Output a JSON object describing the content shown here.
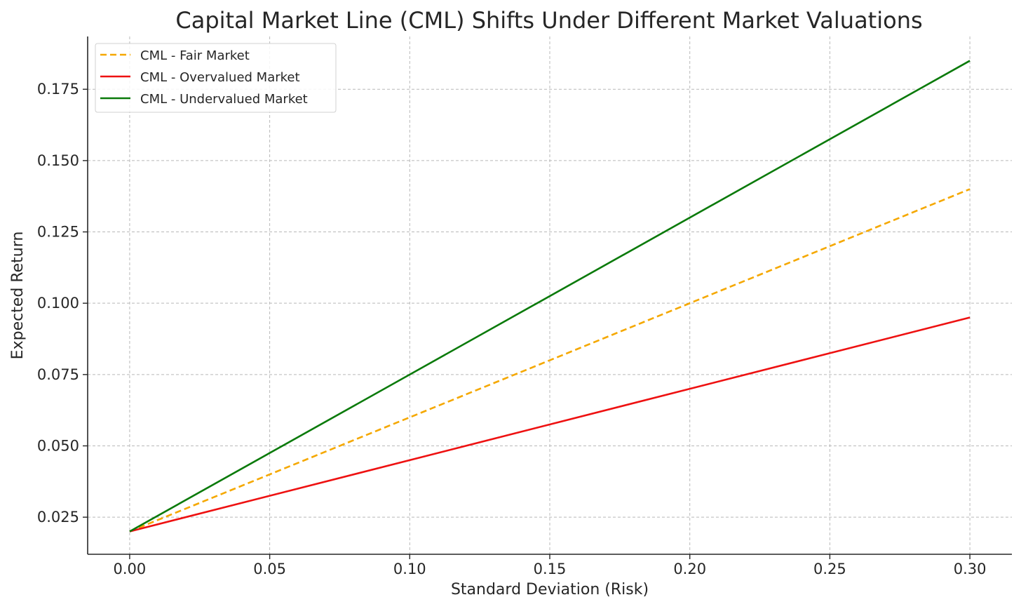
{
  "chart_data": {
    "type": "line",
    "title": "Capital Market Line (CML) Shifts Under Different Market Valuations",
    "xlabel": "Standard Deviation (Risk)",
    "ylabel": "Expected Return",
    "xlim": [
      -0.015,
      0.315
    ],
    "ylim": [
      0.012,
      0.1935
    ],
    "xticks": [
      0.0,
      0.05,
      0.1,
      0.15,
      0.2,
      0.25,
      0.3
    ],
    "xtick_labels": [
      "0.00",
      "0.05",
      "0.10",
      "0.15",
      "0.20",
      "0.25",
      "0.30"
    ],
    "yticks": [
      0.025,
      0.05,
      0.075,
      0.1,
      0.125,
      0.15,
      0.175
    ],
    "ytick_labels": [
      "0.025",
      "0.050",
      "0.075",
      "0.100",
      "0.125",
      "0.150",
      "0.175"
    ],
    "grid": true,
    "legend_position": "top-left",
    "series": [
      {
        "name": "CML - Fair Market",
        "x": [
          0.0,
          0.3
        ],
        "y": [
          0.02,
          0.14
        ],
        "color": "#f5a800",
        "dashed": true
      },
      {
        "name": "CML - Overvalued Market",
        "x": [
          0.0,
          0.3
        ],
        "y": [
          0.02,
          0.095
        ],
        "color": "#ee1111",
        "dashed": false
      },
      {
        "name": "CML - Undervalued Market",
        "x": [
          0.0,
          0.3
        ],
        "y": [
          0.02,
          0.185
        ],
        "color": "#0a7a0a",
        "dashed": false
      }
    ]
  }
}
